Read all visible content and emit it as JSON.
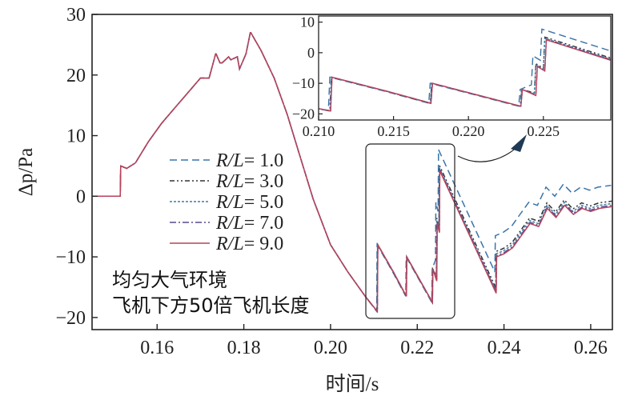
{
  "chart_data": {
    "type": "line",
    "xlabel": "时间/s",
    "ylabel": "Δp/Pa",
    "xlim": [
      0.145,
      0.265
    ],
    "ylim": [
      -22,
      30
    ],
    "xticks": [
      0.16,
      0.18,
      0.2,
      0.22,
      0.24,
      0.26
    ],
    "yticks": [
      -20,
      -10,
      0,
      10,
      20,
      30
    ],
    "xtick_labels": [
      "0.16",
      "0.18",
      "0.20",
      "0.22",
      "0.24",
      "0.26"
    ],
    "ytick_labels": [
      "−20",
      "−10",
      "0",
      "10",
      "20",
      "30"
    ],
    "grid": false,
    "legend_position": "center-left",
    "annotation_lines": [
      "均匀大气环境",
      "飞机下方50倍飞机长度"
    ],
    "base_curve": {
      "x": [
        0.145,
        0.1515,
        0.1516,
        0.153,
        0.155,
        0.158,
        0.161,
        0.164,
        0.167,
        0.17,
        0.172,
        0.1735,
        0.1736,
        0.1745,
        0.175,
        0.1765,
        0.177,
        0.1785,
        0.179,
        0.1805,
        0.1815,
        0.1816,
        0.184,
        0.187,
        0.19,
        0.193,
        0.196,
        0.2,
        0.204,
        0.208,
        0.2108,
        0.2109,
        0.2145,
        0.2175,
        0.2176,
        0.2235,
        0.2236,
        0.2245,
        0.2246,
        0.2251,
        0.2252,
        0.2382,
        0.2383,
        0.24,
        0.242,
        0.244,
        0.246,
        0.248,
        0.25,
        0.252,
        0.254,
        0.256,
        0.258,
        0.26,
        0.262,
        0.265
      ],
      "y": [
        0,
        0,
        5,
        4.6,
        5.5,
        9,
        12,
        14.5,
        17,
        19.5,
        19.5,
        23.5,
        23.5,
        22,
        22,
        23,
        22.5,
        23,
        21,
        23.5,
        27,
        27,
        24,
        19.5,
        13.5,
        6.5,
        -0.5,
        -8,
        -12.5,
        -16.5,
        -19,
        -8,
        -12.5,
        -16.5,
        -10,
        -17.5,
        -12,
        -14,
        -4.5,
        -6,
        4.2,
        -16,
        -10,
        -9.5,
        -8.5,
        -6.5,
        -4.5,
        -5,
        -2,
        -3.5,
        -1.5,
        -3,
        -2,
        -2.5,
        -2,
        -1.7
      ]
    },
    "inset": {
      "xlim": [
        0.21,
        0.2295
      ],
      "ylim": [
        -22,
        12
      ],
      "xticks": [
        0.21,
        0.215,
        0.22,
        0.225
      ],
      "yticks": [
        -20,
        -10,
        0,
        10
      ],
      "xtick_labels": [
        "0.210",
        "0.215",
        "0.220",
        "0.225"
      ],
      "ytick_labels": [
        "−20",
        "−10",
        "0",
        "10"
      ]
    },
    "series": [
      {
        "name": "R/L= 1.0",
        "name_italic": "R/L",
        "name_value": "= 1.0",
        "color": "#3a74a8",
        "dash": "9,5",
        "delta_before": 0.0,
        "delta_after": 3.5,
        "dx": 0.0003
      },
      {
        "name": "R/L= 3.0",
        "name_italic": "R/L",
        "name_value": "= 3.0",
        "color": "#333333",
        "dash": "6,3,2,3,2,3",
        "delta_before": 0.0,
        "delta_after": 0.9,
        "dx": 0.0001
      },
      {
        "name": "R/L= 5.0",
        "name_italic": "R/L",
        "name_value": "= 5.0",
        "color": "#3d7fa6",
        "dash": "3,2",
        "delta_before": 0.0,
        "delta_after": 0.5,
        "dx": 0.0001
      },
      {
        "name": "R/L= 7.0",
        "name_italic": "R/L",
        "name_value": "= 7.0",
        "color": "#5a4a8f",
        "dash": "8,3,2,3",
        "delta_before": 0.0,
        "delta_after": 0.2,
        "dx": 0.0
      },
      {
        "name": "R/L= 9.0",
        "name_italic": "R/L",
        "name_value": "= 9.0",
        "color": "#b8425a",
        "dash": "",
        "delta_before": 0.0,
        "delta_after": 0.0,
        "dx": 0.0
      }
    ]
  }
}
